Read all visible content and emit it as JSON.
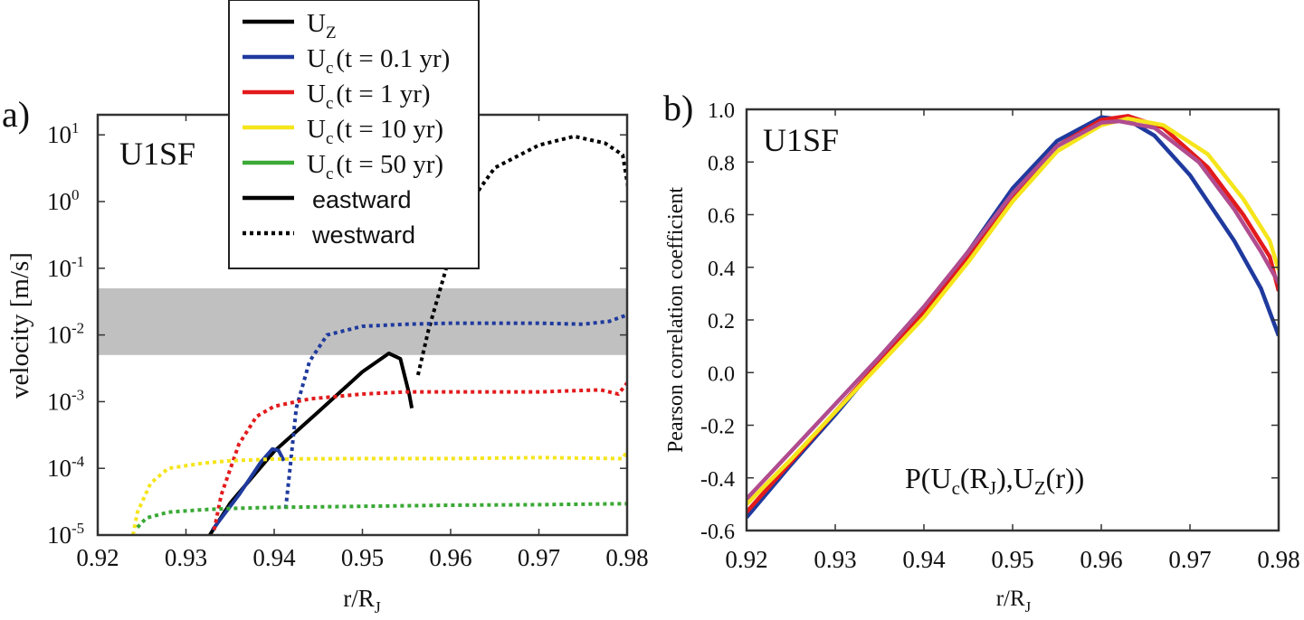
{
  "chart_data": [
    {
      "panel_label": "a)",
      "type": "line",
      "annotation": "U1SF",
      "xlabel": "r/R",
      "xlabel_sub": "J",
      "ylabel": "velocity [m/s]",
      "xlim": [
        0.92,
        0.98
      ],
      "ylim": [
        1e-05,
        20
      ],
      "yscale": "log",
      "x_ticks": [
        "0.92",
        "0.93",
        "0.94",
        "0.95",
        "0.96",
        "0.97",
        "0.98"
      ],
      "y_ticks": [
        {
          "base": "10",
          "exp": "1"
        },
        {
          "base": "10",
          "exp": "0"
        },
        {
          "base": "10",
          "exp": "-1"
        },
        {
          "base": "10",
          "exp": "-2"
        },
        {
          "base": "10",
          "exp": "-3"
        },
        {
          "base": "10",
          "exp": "-4"
        },
        {
          "base": "10",
          "exp": "-5"
        }
      ],
      "shaded_band": {
        "y": [
          0.005,
          0.05
        ],
        "color": "#c0c0c0"
      },
      "legend": {
        "placement": "top-center",
        "entries": [
          {
            "text": "U",
            "sub": "Z",
            "rest": "",
            "color": "#000000",
            "style": "solid"
          },
          {
            "text": "U",
            "sub": "c",
            "rest": "(t = 0.1 yr)",
            "color": "#1f3a9e",
            "style": "solid"
          },
          {
            "text": "U",
            "sub": "c",
            "rest": "(t = 1 yr)",
            "color": "#e31a1c",
            "style": "solid"
          },
          {
            "text": "U",
            "sub": "c",
            "rest": "(t = 10 yr)",
            "color": "#f5e51b",
            "style": "solid"
          },
          {
            "text": "U",
            "sub": "c",
            "rest": "(t = 50 yr)",
            "color": "#3aa935",
            "style": "solid"
          },
          {
            "text": "eastward",
            "sub": "",
            "rest": "",
            "color": "#000000",
            "style": "solid"
          },
          {
            "text": "westward",
            "sub": "",
            "rest": "",
            "color": "#000000",
            "style": "dotted"
          }
        ]
      },
      "series": [
        {
          "color": "#000000",
          "style": "solid",
          "points": [
            [
              0.9327,
              1e-05
            ],
            [
              0.935,
              3e-05
            ],
            [
              0.94,
              0.00018
            ],
            [
              0.945,
              0.0007
            ],
            [
              0.95,
              0.0028
            ],
            [
              0.953,
              0.0053
            ],
            [
              0.9543,
              0.0044
            ],
            [
              0.9553,
              0.0013
            ],
            [
              0.9556,
              0.0008
            ]
          ]
        },
        {
          "color": "#000000",
          "style": "dotted",
          "points": [
            [
              0.9563,
              0.0025
            ],
            [
              0.9575,
              0.012
            ],
            [
              0.9595,
              0.1
            ],
            [
              0.962,
              0.9
            ],
            [
              0.965,
              3.2
            ],
            [
              0.97,
              7
            ],
            [
              0.974,
              9.5
            ],
            [
              0.9775,
              7.5
            ],
            [
              0.9795,
              5
            ],
            [
              0.9805,
              0.8
            ],
            [
              0.9808,
              2.5
            ]
          ]
        },
        {
          "color": "#1f3a9e",
          "style": "solid",
          "points": [
            [
              0.933,
              1.2e-05
            ],
            [
              0.936,
              4e-05
            ],
            [
              0.9385,
              0.000125
            ],
            [
              0.9398,
              0.000195
            ],
            [
              0.9405,
              0.000185
            ],
            [
              0.9411,
              0.00013
            ]
          ]
        },
        {
          "color": "#1f3a9e",
          "style": "dotted",
          "points": [
            [
              0.9413,
              2.5e-05
            ],
            [
              0.9418,
              0.0001
            ],
            [
              0.9425,
              0.0008
            ],
            [
              0.944,
              0.004
            ],
            [
              0.946,
              0.01
            ],
            [
              0.95,
              0.0135
            ],
            [
              0.955,
              0.0145
            ],
            [
              0.96,
              0.015
            ],
            [
              0.97,
              0.015
            ],
            [
              0.975,
              0.0145
            ],
            [
              0.978,
              0.016
            ],
            [
              0.98,
              0.02
            ]
          ]
        },
        {
          "color": "#e31a1c",
          "style": "dotted",
          "points": [
            [
              0.9332,
              1.2e-05
            ],
            [
              0.934,
              4e-05
            ],
            [
              0.936,
              0.00023
            ],
            [
              0.938,
              0.0006
            ],
            [
              0.94,
              0.00085
            ],
            [
              0.944,
              0.0011
            ],
            [
              0.95,
              0.0013
            ],
            [
              0.955,
              0.0014
            ],
            [
              0.96,
              0.0014
            ],
            [
              0.97,
              0.0014
            ],
            [
              0.977,
              0.0015
            ],
            [
              0.979,
              0.0013
            ],
            [
              0.98,
              0.0019
            ]
          ]
        },
        {
          "color": "#f5e51b",
          "style": "dotted",
          "points": [
            [
              0.924,
              1e-05
            ],
            [
              0.9245,
              2.2e-05
            ],
            [
              0.926,
              6e-05
            ],
            [
              0.928,
              0.0001
            ],
            [
              0.932,
              0.00012
            ],
            [
              0.935,
              0.00013
            ],
            [
              0.94,
              0.000138
            ],
            [
              0.95,
              0.00014
            ],
            [
              0.96,
              0.00014
            ],
            [
              0.97,
              0.000145
            ],
            [
              0.9795,
              0.00014
            ],
            [
              0.98,
              0.00018
            ]
          ]
        },
        {
          "color": "#3aa935",
          "style": "dotted",
          "points": [
            [
              0.9245,
              1.3e-05
            ],
            [
              0.9255,
              1.8e-05
            ],
            [
              0.928,
              2.2e-05
            ],
            [
              0.932,
              2.4e-05
            ],
            [
              0.935,
              2.5e-05
            ],
            [
              0.94,
              2.6e-05
            ],
            [
              0.95,
              2.7e-05
            ],
            [
              0.96,
              2.8e-05
            ],
            [
              0.97,
              2.85e-05
            ],
            [
              0.98,
              2.95e-05
            ]
          ]
        }
      ]
    },
    {
      "panel_label": "b)",
      "type": "line",
      "annotation": "U1SF",
      "formula": {
        "parts": [
          "P(U",
          "c",
          "(R",
          "J",
          "),U",
          "Z",
          "(r))"
        ]
      },
      "xlabel": "r/R",
      "xlabel_sub": "J",
      "ylabel": "Pearson correlation coefficient",
      "xlim": [
        0.92,
        0.98
      ],
      "ylim": [
        -0.6,
        1.0
      ],
      "x_ticks": [
        "0.92",
        "0.93",
        "0.94",
        "0.95",
        "0.96",
        "0.97",
        "0.98"
      ],
      "y_ticks": [
        "1.0",
        "0.8",
        "0.6",
        "0.4",
        "0.2",
        "0.0",
        "-0.2",
        "-0.4",
        "-0.6"
      ],
      "series": [
        {
          "color": "#1f3a9e",
          "points": [
            [
              0.92,
              -0.55
            ],
            [
              0.925,
              -0.35
            ],
            [
              0.93,
              -0.16
            ],
            [
              0.935,
              0.04
            ],
            [
              0.94,
              0.24
            ],
            [
              0.945,
              0.46
            ],
            [
              0.95,
              0.7
            ],
            [
              0.955,
              0.88
            ],
            [
              0.96,
              0.97
            ],
            [
              0.963,
              0.96
            ],
            [
              0.966,
              0.9
            ],
            [
              0.97,
              0.75
            ],
            [
              0.975,
              0.5
            ],
            [
              0.978,
              0.32
            ],
            [
              0.98,
              0.14
            ]
          ]
        },
        {
          "color": "#e31a1c",
          "points": [
            [
              0.92,
              -0.53
            ],
            [
              0.925,
              -0.34
            ],
            [
              0.93,
              -0.15
            ],
            [
              0.935,
              0.04
            ],
            [
              0.94,
              0.23
            ],
            [
              0.945,
              0.44
            ],
            [
              0.95,
              0.67
            ],
            [
              0.955,
              0.86
            ],
            [
              0.96,
              0.96
            ],
            [
              0.963,
              0.975
            ],
            [
              0.967,
              0.93
            ],
            [
              0.972,
              0.78
            ],
            [
              0.976,
              0.6
            ],
            [
              0.979,
              0.44
            ],
            [
              0.98,
              0.31
            ]
          ]
        },
        {
          "color": "#f5e51b",
          "points": [
            [
              0.92,
              -0.5
            ],
            [
              0.925,
              -0.33
            ],
            [
              0.93,
              -0.15
            ],
            [
              0.935,
              0.03
            ],
            [
              0.94,
              0.21
            ],
            [
              0.945,
              0.42
            ],
            [
              0.95,
              0.65
            ],
            [
              0.955,
              0.84
            ],
            [
              0.96,
              0.94
            ],
            [
              0.963,
              0.965
            ],
            [
              0.967,
              0.94
            ],
            [
              0.972,
              0.83
            ],
            [
              0.976,
              0.66
            ],
            [
              0.979,
              0.5
            ],
            [
              0.98,
              0.39
            ]
          ]
        },
        {
          "color": "#b04c8f",
          "points": [
            [
              0.92,
              -0.48
            ],
            [
              0.925,
              -0.3
            ],
            [
              0.93,
              -0.12
            ],
            [
              0.935,
              0.06
            ],
            [
              0.94,
              0.25
            ],
            [
              0.945,
              0.46
            ],
            [
              0.95,
              0.68
            ],
            [
              0.955,
              0.86
            ],
            [
              0.96,
              0.95
            ],
            [
              0.962,
              0.955
            ],
            [
              0.966,
              0.93
            ],
            [
              0.971,
              0.8
            ],
            [
              0.975,
              0.62
            ],
            [
              0.978,
              0.46
            ],
            [
              0.98,
              0.34
            ]
          ]
        }
      ]
    }
  ]
}
